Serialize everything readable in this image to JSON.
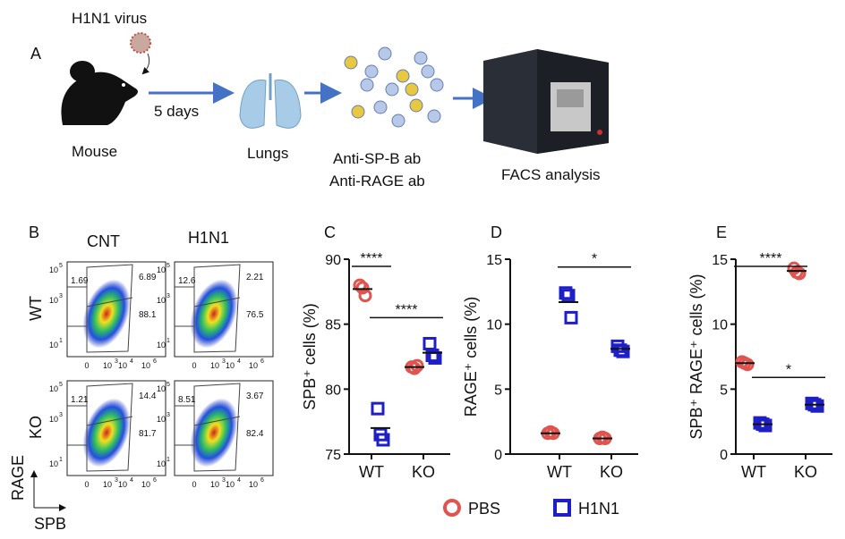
{
  "panel_a": {
    "label": "A",
    "virus": "H1N1 virus",
    "mouse": "Mouse",
    "duration": "5 days",
    "lungs": "Lungs",
    "antibody_1": "Anti-SP-B ab",
    "antibody_2": "Anti-RAGE ab",
    "facs": "FACS analysis"
  },
  "panel_b": {
    "label": "B",
    "columns": [
      "CNT",
      "H1N1"
    ],
    "rows": [
      "WT",
      "KO"
    ],
    "y_axis": "RAGE",
    "x_axis": "SPB",
    "y_ticks": [
      "10",
      "10",
      "10"
    ],
    "y_tick_exp": [
      "5",
      "3",
      "1"
    ],
    "x_ticks": [
      "0",
      "10",
      "10",
      "10"
    ],
    "x_tick_exp": [
      "",
      "3",
      "4",
      "6"
    ],
    "plots": [
      {
        "row": "WT",
        "col": "CNT",
        "upper_left": "1.69",
        "upper_right": "6.89",
        "lower_right": "88.1"
      },
      {
        "row": "WT",
        "col": "H1N1",
        "upper_left": "12.6",
        "upper_right": "2.21",
        "lower_right": "76.5"
      },
      {
        "row": "KO",
        "col": "CNT",
        "upper_left": "1.21",
        "upper_right": "14.4",
        "lower_right": "81.7"
      },
      {
        "row": "KO",
        "col": "H1N1",
        "upper_left": "8.51",
        "upper_right": "3.67",
        "lower_right": "82.4"
      }
    ]
  },
  "legend": {
    "entries": [
      {
        "name": "PBS",
        "color": "#e0534f",
        "marker": "circle"
      },
      {
        "name": "H1N1",
        "color": "#1f1fc8",
        "marker": "square"
      }
    ]
  },
  "chart_data": [
    {
      "panel": "C",
      "type": "scatter",
      "ylabel": "SPB+ cells (%)",
      "ylim": [
        75,
        90
      ],
      "yticks": [
        75,
        80,
        85,
        90
      ],
      "categories": [
        "WT",
        "KO"
      ],
      "series": [
        {
          "name": "PBS",
          "values": [
            [
              88.0,
              87.8,
              87.2
            ],
            [
              81.7,
              81.6,
              81.8
            ]
          ],
          "means": [
            87.7,
            81.7
          ]
        },
        {
          "name": "H1N1",
          "values": [
            [
              78.5,
              76.5,
              76.1
            ],
            [
              83.5,
              82.6,
              82.4
            ]
          ],
          "means": [
            77.0,
            82.8
          ]
        }
      ],
      "significance": [
        {
          "label": "****",
          "from": "WT PBS",
          "to": "WT H1N1"
        },
        {
          "label": "****",
          "from": "WT H1N1",
          "to": "KO H1N1"
        }
      ]
    },
    {
      "panel": "D",
      "type": "scatter",
      "ylabel": "RAGE+ cells (%)",
      "ylim": [
        0,
        15
      ],
      "yticks": [
        0,
        5,
        10,
        15
      ],
      "categories": [
        "WT",
        "KO"
      ],
      "series": [
        {
          "name": "PBS",
          "values": [
            [
              1.6,
              1.7,
              1.6
            ],
            [
              1.2,
              1.3,
              1.2
            ]
          ],
          "means": [
            1.6,
            1.2
          ]
        },
        {
          "name": "H1N1",
          "values": [
            [
              12.4,
              12.2,
              10.5
            ],
            [
              8.3,
              8.0,
              7.9
            ]
          ],
          "means": [
            11.7,
            8.1
          ]
        }
      ],
      "significance": [
        {
          "label": "*",
          "from": "WT H1N1",
          "to": "KO H1N1"
        }
      ]
    },
    {
      "panel": "E",
      "type": "scatter",
      "ylabel": "SPB+ RAGE+ cells (%)",
      "ylim": [
        0,
        15
      ],
      "yticks": [
        0,
        5,
        10,
        15
      ],
      "categories": [
        "WT",
        "KO"
      ],
      "series": [
        {
          "name": "PBS",
          "values": [
            [
              7.1,
              7.0,
              6.9
            ],
            [
              14.3,
              14.0,
              13.9
            ]
          ],
          "means": [
            7.0,
            14.1
          ]
        },
        {
          "name": "H1N1",
          "values": [
            [
              2.4,
              2.3,
              2.2
            ],
            [
              3.9,
              3.8,
              3.7
            ]
          ],
          "means": [
            2.3,
            3.8
          ]
        }
      ],
      "significance": [
        {
          "label": "****",
          "from": "WT PBS",
          "to": "KO PBS"
        },
        {
          "label": "*",
          "from": "WT H1N1",
          "to": "KO H1N1"
        }
      ]
    }
  ]
}
